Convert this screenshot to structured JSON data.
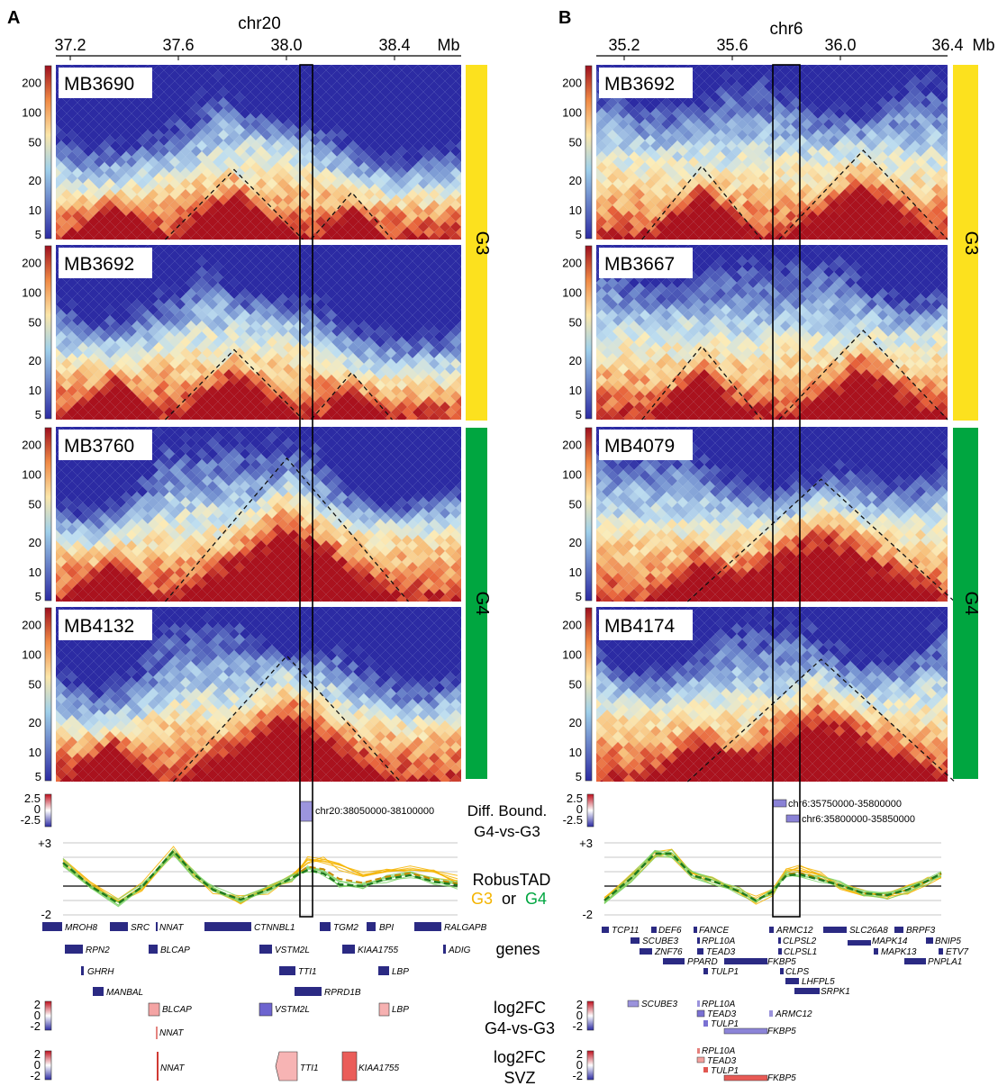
{
  "panels": [
    {
      "letter": "A",
      "chrom": "chr20",
      "axis_ticks": [
        "37.2",
        "37.6",
        "38.0",
        "38.4",
        "Mb"
      ],
      "samples": [
        "MB3690",
        "MB3692",
        "MB3760",
        "MB4132"
      ],
      "groups": [
        {
          "label": "G3",
          "color": "#fce11e"
        },
        {
          "label": "G4",
          "color": "#00a640"
        }
      ],
      "ylabels": [
        "200",
        "100",
        "50",
        "20",
        "10",
        "5"
      ],
      "diff_scale": [
        "2.5",
        "0",
        "-2.5"
      ],
      "diff_regions": [
        "chr20:38050000-38100000"
      ],
      "robus_scale": [
        "+3",
        "-2"
      ],
      "genes": [
        "MROH8",
        "SRC",
        "NNAT",
        "CTNNBL1",
        "TGM2",
        "BPI",
        "RALGAPB",
        "RPN2",
        "BLCAP",
        "VSTM2L",
        "KIAA1755",
        "ADIG",
        "GHRH",
        "TTI1",
        "LBP",
        "MANBAL",
        "RPRD1B"
      ],
      "fc_g4g3": [
        "BLCAP",
        "VSTM2L",
        "LBP",
        "NNAT"
      ],
      "fc_svz": [
        "NNAT",
        "TTI1",
        "KIAA1755"
      ],
      "fc_scale": [
        "2",
        "0",
        "-2"
      ]
    },
    {
      "letter": "B",
      "chrom": "chr6",
      "axis_ticks": [
        "35.2",
        "35.6",
        "36.0",
        "36.4",
        "Mb"
      ],
      "samples": [
        "MB3692",
        "MB3667",
        "MB4079",
        "MB4174"
      ],
      "groups": [
        {
          "label": "G3",
          "color": "#fce11e"
        },
        {
          "label": "G4",
          "color": "#00a640"
        }
      ],
      "ylabels": [
        "200",
        "100",
        "50",
        "20",
        "10",
        "5"
      ],
      "diff_scale": [
        "2.5",
        "0",
        "-2.5"
      ],
      "diff_regions": [
        "chr6:35750000-35800000",
        "chr6:35800000-35850000"
      ],
      "robus_scale": [
        "+3",
        "-2"
      ],
      "genes": [
        "TCP11",
        "DEF6",
        "FANCE",
        "ARMC12",
        "SLC26A8",
        "BRPF3",
        "SCUBE3",
        "RPL10A",
        "CLPSL2",
        "BNIP5",
        "ZNF76",
        "TEAD3",
        "CLPSL1",
        "MAPK14",
        "MAPK13",
        "ETV7",
        "PPARD",
        "FKBP5",
        "PNPLA1",
        "TULP1",
        "CLPS",
        "LHFPL5",
        "SRPK1"
      ],
      "fc_g4g3": [
        "SCUBE3",
        "RPL10A",
        "TEAD3",
        "TULP1",
        "ARMC12",
        "FKBP5"
      ],
      "fc_svz": [
        "RPL10A",
        "TEAD3",
        "TULP1",
        "FKBP5"
      ],
      "fc_scale": [
        "2",
        "0",
        "-2"
      ]
    }
  ],
  "track_labels": {
    "diff_l1": "Diff. Bound.",
    "diff_l2": "G4-vs-G3",
    "robus_l1": "RobusTAD",
    "robus_g3": "G3",
    "robus_or": "or",
    "robus_g4": "G4",
    "genes": "genes",
    "fc1_l1": "log2FC",
    "fc1_l2": "G4-vs-G3",
    "fc2_l1": "log2FC",
    "fc2_l2": "SVZ"
  },
  "colors": {
    "hot": "#b3121e",
    "mid": "#fbe6a9",
    "cool": "#2c2ba3",
    "gene": "#2b2a83",
    "g3_line": "#f4b400",
    "g4_line": "#1f7a1f"
  }
}
